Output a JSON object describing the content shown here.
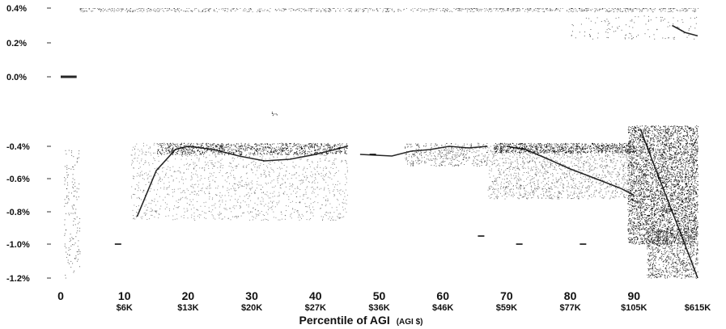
{
  "chart_data": {
    "type": "scatter",
    "title": "",
    "xlabel": "Percentile of AGI",
    "xlabel_unit": "(AGI $)",
    "ylabel": "",
    "xlim": [
      0,
      100
    ],
    "ylim": [
      -1.2,
      0.4
    ],
    "grid": false,
    "y_ticks": [
      {
        "value": 0.4,
        "label": "0.4%"
      },
      {
        "value": 0.2,
        "label": "0.2%"
      },
      {
        "value": 0.0,
        "label": "0.0%"
      },
      {
        "value": -0.4,
        "label": "-0.4%"
      },
      {
        "value": -0.6,
        "label": "-0.6%"
      },
      {
        "value": -0.8,
        "label": "-0.8%"
      },
      {
        "value": -1.0,
        "label": "-1.0%"
      },
      {
        "value": -1.2,
        "label": "-1.2%"
      }
    ],
    "x_ticks": [
      {
        "value": 0,
        "label": "0",
        "agi": ""
      },
      {
        "value": 10,
        "label": "10",
        "agi": "$6K"
      },
      {
        "value": 20,
        "label": "20",
        "agi": "$13K"
      },
      {
        "value": 30,
        "label": "30",
        "agi": "$20K"
      },
      {
        "value": 40,
        "label": "40",
        "agi": "$27K"
      },
      {
        "value": 50,
        "label": "50",
        "agi": "$36K"
      },
      {
        "value": 60,
        "label": "60",
        "agi": "$46K"
      },
      {
        "value": 70,
        "label": "70",
        "agi": "$59K"
      },
      {
        "value": 80,
        "label": "80",
        "agi": "$77K"
      },
      {
        "value": 90,
        "label": "90",
        "agi": "$105K"
      },
      {
        "value": 100,
        "label": "",
        "agi": "$615K"
      }
    ],
    "series": [
      {
        "points": [
          [
            0.0,
            0.0
          ],
          [
            1.0,
            0.0
          ],
          [
            2.0,
            0.0
          ],
          [
            2.5,
            0.0
          ]
        ]
      },
      {
        "points": [
          [
            12,
            -0.83
          ],
          [
            15,
            -0.55
          ],
          [
            18,
            -0.42
          ],
          [
            20,
            -0.4
          ],
          [
            24,
            -0.42
          ],
          [
            28,
            -0.46
          ],
          [
            32,
            -0.49
          ],
          [
            36,
            -0.48
          ],
          [
            40,
            -0.45
          ],
          [
            43,
            -0.42
          ],
          [
            45,
            -0.4
          ]
        ]
      },
      {
        "points": [
          [
            47,
            -0.45
          ],
          [
            52,
            -0.46
          ],
          [
            55,
            -0.43
          ],
          [
            58,
            -0.42
          ],
          [
            61,
            -0.4
          ],
          [
            64,
            -0.41
          ],
          [
            67,
            -0.4
          ]
        ]
      },
      {
        "points": [
          [
            70,
            -0.4
          ],
          [
            73,
            -0.42
          ],
          [
            76,
            -0.47
          ],
          [
            80,
            -0.54
          ],
          [
            84,
            -0.6
          ],
          [
            88,
            -0.66
          ],
          [
            90,
            -0.7
          ]
        ]
      },
      {
        "points": [
          [
            91,
            -0.3
          ],
          [
            93,
            -0.5
          ],
          [
            95,
            -0.7
          ],
          [
            97,
            -0.9
          ],
          [
            99,
            -1.1
          ],
          [
            100,
            -1.2
          ]
        ]
      },
      {
        "points": [
          [
            96,
            0.3
          ],
          [
            98,
            0.26
          ],
          [
            100,
            0.24
          ]
        ]
      }
    ]
  }
}
